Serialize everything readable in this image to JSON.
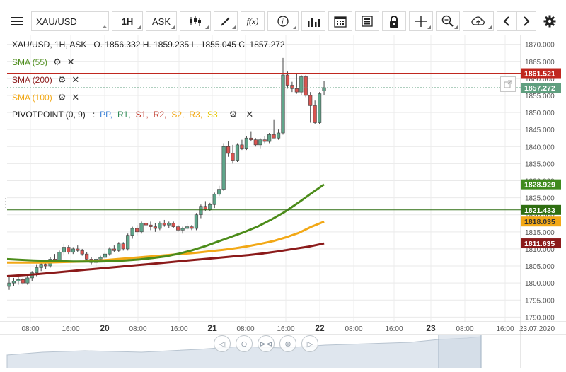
{
  "toolbar": {
    "menu_icon": "hamburger-icon",
    "symbol": "XAU/USD",
    "timeframe": "1H",
    "price_type": "ASK",
    "chart_type_icon": "candlestick-icon",
    "draw_icon": "pencil-icon",
    "fx_label": "f(x)",
    "info_icon": "info-icon",
    "volume_icon": "bar-chart-icon",
    "calendar_icon": "calendar-icon",
    "news_icon": "document-icon",
    "lock_icon": "lock-icon",
    "crosshair_icon": "crosshair-icon",
    "zoom_icon": "zoom-icon",
    "cloud_icon": "cloud-upload-icon",
    "prev_icon": "chevron-left-icon",
    "next_icon": "chevron-right-icon",
    "settings_icon": "gear-icon"
  },
  "ohlc_header": "XAU/USD, 1H, ASK   O. 1856.332 H. 1859.235 L. 1855.045 C. 1857.272",
  "indicators": [
    {
      "label": "SMA (55)",
      "color": "#4c8c1a"
    },
    {
      "label": "SMA (200)",
      "color": "#8b1a1a"
    },
    {
      "label": "SMA (100)",
      "color": "#f2a816"
    }
  ],
  "pivot": {
    "label": "PIVOTPOINT (0, 9)",
    "sep": ":",
    "items": [
      {
        "t": "PP,",
        "c": "#3a7fd5"
      },
      {
        "t": "R1,",
        "c": "#2e8b57"
      },
      {
        "t": "S1,",
        "c": "#c0392b"
      },
      {
        "t": "R2,",
        "c": "#c0392b"
      },
      {
        "t": "S2,",
        "c": "#f2a816"
      },
      {
        "t": "R3,",
        "c": "#f2a816"
      },
      {
        "t": "S3",
        "c": "#e6c700"
      }
    ]
  },
  "chart_data": {
    "type": "candlestick",
    "symbol": "XAU/USD",
    "timeframe": "1H",
    "ylim": [
      1788,
      1872
    ],
    "yticks": [
      1790,
      1795,
      1800,
      1805,
      1810,
      1815,
      1820,
      1825,
      1830,
      1835,
      1840,
      1845,
      1850,
      1855,
      1860,
      1865,
      1870
    ],
    "ytick_labels": [
      "1790.000",
      "1795.000",
      "1800.000",
      "1805.000",
      "1810.000",
      "1815.000",
      "1820.000",
      "1825.000",
      "1830.000",
      "1835.000",
      "1840.000",
      "1845.000",
      "1850.000",
      "1855.000",
      "1860.000",
      "1865.000",
      "1870.000"
    ],
    "xticks": [
      {
        "label": "08:00",
        "bold": false
      },
      {
        "label": "16:00",
        "bold": false
      },
      {
        "label": "20",
        "bold": true
      },
      {
        "label": "08:00",
        "bold": false
      },
      {
        "label": "16:00",
        "bold": false
      },
      {
        "label": "21",
        "bold": true
      },
      {
        "label": "08:00",
        "bold": false
      },
      {
        "label": "16:00",
        "bold": false
      },
      {
        "label": "22",
        "bold": true
      },
      {
        "label": "08:00",
        "bold": false
      },
      {
        "label": "16:00",
        "bold": false
      },
      {
        "label": "23",
        "bold": true
      },
      {
        "label": "08:00",
        "bold": false
      },
      {
        "label": "16:00",
        "bold": false
      },
      {
        "label": "23.07.2020",
        "bold": false
      }
    ],
    "candles": [
      [
        1799.0,
        1802.0,
        1798.0,
        1800.0
      ],
      [
        1800.0,
        1801.5,
        1799.0,
        1800.5
      ],
      [
        1800.5,
        1802.0,
        1799.5,
        1801.0
      ],
      [
        1801.0,
        1801.5,
        1799.5,
        1800.0
      ],
      [
        1800.0,
        1802.5,
        1799.5,
        1801.5
      ],
      [
        1801.5,
        1803.5,
        1800.5,
        1803.0
      ],
      [
        1803.0,
        1805.5,
        1802.0,
        1804.5
      ],
      [
        1804.5,
        1806.5,
        1803.5,
        1805.5
      ],
      [
        1805.5,
        1806.5,
        1804.0,
        1805.0
      ],
      [
        1805.0,
        1807.5,
        1804.5,
        1807.0
      ],
      [
        1807.0,
        1808.5,
        1806.0,
        1806.5
      ],
      [
        1806.5,
        1809.5,
        1806.0,
        1809.0
      ],
      [
        1809.0,
        1811.5,
        1808.0,
        1810.5
      ],
      [
        1810.5,
        1811.0,
        1808.5,
        1809.0
      ],
      [
        1809.0,
        1810.5,
        1808.5,
        1810.0
      ],
      [
        1810.0,
        1811.0,
        1809.0,
        1809.5
      ],
      [
        1809.5,
        1810.0,
        1808.0,
        1808.5
      ],
      [
        1808.5,
        1809.0,
        1806.5,
        1807.0
      ],
      [
        1807.0,
        1807.5,
        1805.5,
        1806.0
      ],
      [
        1806.0,
        1807.5,
        1805.0,
        1807.0
      ],
      [
        1807.0,
        1808.0,
        1806.5,
        1807.5
      ],
      [
        1807.5,
        1809.0,
        1807.0,
        1808.5
      ],
      [
        1808.5,
        1810.5,
        1808.0,
        1810.0
      ],
      [
        1810.0,
        1811.0,
        1809.0,
        1809.5
      ],
      [
        1809.5,
        1812.0,
        1809.0,
        1811.5
      ],
      [
        1811.5,
        1812.0,
        1809.5,
        1810.0
      ],
      [
        1810.0,
        1814.5,
        1809.5,
        1814.0
      ],
      [
        1814.0,
        1816.5,
        1813.0,
        1816.0
      ],
      [
        1816.0,
        1817.0,
        1814.0,
        1815.0
      ],
      [
        1815.0,
        1818.0,
        1814.5,
        1817.5
      ],
      [
        1817.5,
        1820.0,
        1816.0,
        1817.0
      ],
      [
        1817.0,
        1818.0,
        1815.5,
        1816.5
      ],
      [
        1816.5,
        1817.5,
        1815.0,
        1816.0
      ],
      [
        1816.0,
        1818.0,
        1815.5,
        1817.5
      ],
      [
        1817.5,
        1818.5,
        1816.5,
        1817.0
      ],
      [
        1817.0,
        1818.0,
        1816.0,
        1817.5
      ],
      [
        1817.5,
        1818.0,
        1816.0,
        1816.5
      ],
      [
        1816.5,
        1817.0,
        1815.0,
        1815.5
      ],
      [
        1815.5,
        1816.5,
        1814.5,
        1816.0
      ],
      [
        1816.0,
        1817.5,
        1815.5,
        1816.5
      ],
      [
        1816.5,
        1817.0,
        1815.5,
        1816.0
      ],
      [
        1816.0,
        1820.5,
        1815.5,
        1820.0
      ],
      [
        1820.0,
        1823.0,
        1819.0,
        1822.5
      ],
      [
        1822.5,
        1824.0,
        1821.0,
        1821.5
      ],
      [
        1821.5,
        1823.5,
        1821.0,
        1823.0
      ],
      [
        1823.0,
        1826.5,
        1822.0,
        1826.0
      ],
      [
        1826.0,
        1828.5,
        1825.5,
        1827.5
      ],
      [
        1827.5,
        1841.0,
        1827.0,
        1840.0
      ],
      [
        1840.0,
        1841.5,
        1837.0,
        1838.0
      ],
      [
        1838.0,
        1840.5,
        1835.0,
        1836.0
      ],
      [
        1836.0,
        1841.0,
        1835.5,
        1840.5
      ],
      [
        1840.5,
        1842.0,
        1839.0,
        1839.5
      ],
      [
        1839.5,
        1843.0,
        1839.0,
        1842.5
      ],
      [
        1842.5,
        1844.5,
        1841.5,
        1842.0
      ],
      [
        1842.0,
        1842.5,
        1840.0,
        1840.5
      ],
      [
        1840.5,
        1842.5,
        1839.5,
        1842.0
      ],
      [
        1842.0,
        1843.0,
        1841.0,
        1841.5
      ],
      [
        1841.5,
        1844.0,
        1841.0,
        1843.5
      ],
      [
        1843.5,
        1848.0,
        1842.5,
        1842.5
      ],
      [
        1842.5,
        1845.0,
        1842.0,
        1844.0
      ],
      [
        1844.0,
        1866.0,
        1843.5,
        1861.0
      ],
      [
        1861.0,
        1862.0,
        1857.0,
        1858.0
      ],
      [
        1858.0,
        1859.0,
        1856.0,
        1857.0
      ],
      [
        1857.0,
        1861.5,
        1855.5,
        1856.0
      ],
      [
        1856.0,
        1861.0,
        1855.0,
        1860.5
      ],
      [
        1860.5,
        1861.0,
        1854.5,
        1855.0
      ],
      [
        1855.0,
        1856.0,
        1847.0,
        1852.0
      ],
      [
        1852.0,
        1853.5,
        1846.5,
        1847.0
      ],
      [
        1847.0,
        1856.0,
        1846.5,
        1855.5
      ],
      [
        1856.3,
        1859.2,
        1855.0,
        1857.3
      ]
    ],
    "sma55": [
      1807.0,
      1806.8,
      1806.6,
      1806.5,
      1806.4,
      1806.3,
      1806.3,
      1806.3,
      1806.4,
      1806.6,
      1806.9,
      1807.3,
      1807.8,
      1808.6,
      1809.6,
      1810.8,
      1812.2,
      1813.6,
      1815.0,
      1816.6,
      1818.6,
      1820.8,
      1823.4,
      1826.2,
      1828.9
    ],
    "sma100": [
      1806.0,
      1806.0,
      1806.0,
      1806.0,
      1806.1,
      1806.2,
      1806.3,
      1806.5,
      1806.8,
      1807.1,
      1807.4,
      1807.7,
      1808.0,
      1808.3,
      1808.6,
      1808.9,
      1809.3,
      1809.7,
      1810.2,
      1810.8,
      1811.5,
      1812.3,
      1813.4,
      1814.7,
      1816.5,
      1818.0
    ],
    "sma200": [
      1802.0,
      1802.3,
      1802.6,
      1803.0,
      1803.4,
      1803.8,
      1804.2,
      1804.6,
      1805.0,
      1805.4,
      1805.8,
      1806.2,
      1806.6,
      1807.0,
      1807.4,
      1807.8,
      1808.2,
      1808.7,
      1809.3,
      1810.0,
      1810.7,
      1811.6
    ],
    "price_lines": [
      {
        "label": "1861.521",
        "value": 1861.521,
        "bg": "#c0271f",
        "line": "#c0271f",
        "style": "solid"
      },
      {
        "label": "1857.272",
        "value": 1857.272,
        "bg": "#5f9f7f",
        "line": "#5f9f7f",
        "style": "dashed"
      },
      {
        "label": "1828.929",
        "value": 1828.929,
        "bg": "#3f8a1e",
        "line": null,
        "style": null
      },
      {
        "label": "1821.433",
        "value": 1821.433,
        "bg": "#2f6f12",
        "line": "#2f6f12",
        "style": "solid"
      },
      {
        "label": "1818.035",
        "value": 1818.035,
        "bg": "#f2a816",
        "line": null,
        "style": null,
        "fg": "#333"
      },
      {
        "label": "1811.635",
        "value": 1811.635,
        "bg": "#8b1a1a",
        "line": null,
        "style": null
      }
    ],
    "bull_color": "#5fa58a",
    "bear_color": "#d9534f",
    "grid": true
  },
  "nav": [
    "chevron-left-icon",
    "zoom-out-icon",
    "fit-icon",
    "zoom-in-icon",
    "chevron-right-icon"
  ],
  "expand_icon": "expand-icon"
}
